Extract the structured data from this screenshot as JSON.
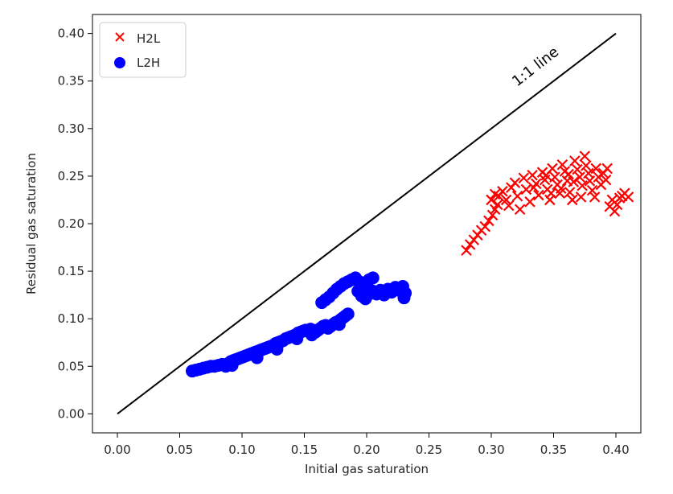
{
  "chart_data": {
    "type": "scatter",
    "xlabel": "Initial gas saturation",
    "ylabel": "Residual gas saturation",
    "xlim": [
      -0.02,
      0.42
    ],
    "ylim": [
      -0.02,
      0.42
    ],
    "xticks": [
      "0.00",
      "0.05",
      "0.10",
      "0.15",
      "0.20",
      "0.25",
      "0.30",
      "0.35",
      "0.40"
    ],
    "yticks": [
      "0.00",
      "0.05",
      "0.10",
      "0.15",
      "0.20",
      "0.25",
      "0.30",
      "0.35",
      "0.40"
    ],
    "grid": false,
    "legend_position": "top-left",
    "annotation": "1:1 line",
    "reference_line": {
      "x": [
        0.0,
        0.4
      ],
      "y": [
        0.0,
        0.4
      ],
      "color": "#000000"
    },
    "series": [
      {
        "name": "H2L",
        "marker": "x",
        "color": "#ff0000",
        "points": [
          [
            0.28,
            0.172
          ],
          [
            0.283,
            0.178
          ],
          [
            0.286,
            0.183
          ],
          [
            0.289,
            0.188
          ],
          [
            0.292,
            0.193
          ],
          [
            0.295,
            0.197
          ],
          [
            0.298,
            0.203
          ],
          [
            0.301,
            0.209
          ],
          [
            0.303,
            0.215
          ],
          [
            0.305,
            0.22
          ],
          [
            0.3,
            0.225
          ],
          [
            0.303,
            0.231
          ],
          [
            0.306,
            0.229
          ],
          [
            0.309,
            0.234
          ],
          [
            0.312,
            0.225
          ],
          [
            0.314,
            0.219
          ],
          [
            0.316,
            0.238
          ],
          [
            0.319,
            0.243
          ],
          [
            0.321,
            0.229
          ],
          [
            0.323,
            0.215
          ],
          [
            0.326,
            0.248
          ],
          [
            0.328,
            0.236
          ],
          [
            0.331,
            0.223
          ],
          [
            0.333,
            0.251
          ],
          [
            0.336,
            0.242
          ],
          [
            0.338,
            0.23
          ],
          [
            0.341,
            0.254
          ],
          [
            0.343,
            0.246
          ],
          [
            0.345,
            0.236
          ],
          [
            0.347,
            0.225
          ],
          [
            0.349,
            0.258
          ],
          [
            0.351,
            0.249
          ],
          [
            0.353,
            0.241
          ],
          [
            0.355,
            0.232
          ],
          [
            0.357,
            0.262
          ],
          [
            0.359,
            0.255
          ],
          [
            0.361,
            0.245
          ],
          [
            0.363,
            0.233
          ],
          [
            0.365,
            0.225
          ],
          [
            0.367,
            0.266
          ],
          [
            0.369,
            0.257
          ],
          [
            0.371,
            0.249
          ],
          [
            0.373,
            0.24
          ],
          [
            0.375,
            0.271
          ],
          [
            0.376,
            0.261
          ],
          [
            0.378,
            0.253
          ],
          [
            0.379,
            0.245
          ],
          [
            0.381,
            0.235
          ],
          [
            0.383,
            0.228
          ],
          [
            0.384,
            0.258
          ],
          [
            0.386,
            0.249
          ],
          [
            0.388,
            0.241
          ],
          [
            0.39,
            0.253
          ],
          [
            0.392,
            0.246
          ],
          [
            0.393,
            0.258
          ],
          [
            0.395,
            0.218
          ],
          [
            0.397,
            0.225
          ],
          [
            0.399,
            0.213
          ],
          [
            0.401,
            0.22
          ],
          [
            0.403,
            0.227
          ],
          [
            0.405,
            0.229
          ],
          [
            0.407,
            0.232
          ],
          [
            0.41,
            0.228
          ],
          [
            0.334,
            0.238
          ],
          [
            0.344,
            0.251
          ],
          [
            0.356,
            0.237
          ],
          [
            0.366,
            0.244
          ],
          [
            0.372,
            0.228
          ],
          [
            0.362,
            0.252
          ],
          [
            0.348,
            0.232
          ]
        ]
      },
      {
        "name": "L2H",
        "marker": "o",
        "color": "#0000ff",
        "points": [
          [
            0.06,
            0.045
          ],
          [
            0.063,
            0.046
          ],
          [
            0.066,
            0.047
          ],
          [
            0.069,
            0.048
          ],
          [
            0.072,
            0.049
          ],
          [
            0.075,
            0.05
          ],
          [
            0.078,
            0.05
          ],
          [
            0.081,
            0.051
          ],
          [
            0.084,
            0.052
          ],
          [
            0.087,
            0.05
          ],
          [
            0.089,
            0.053
          ],
          [
            0.091,
            0.055
          ],
          [
            0.093,
            0.056
          ],
          [
            0.095,
            0.057
          ],
          [
            0.097,
            0.058
          ],
          [
            0.099,
            0.059
          ],
          [
            0.101,
            0.06
          ],
          [
            0.103,
            0.061
          ],
          [
            0.105,
            0.062
          ],
          [
            0.107,
            0.063
          ],
          [
            0.109,
            0.064
          ],
          [
            0.111,
            0.065
          ],
          [
            0.113,
            0.066
          ],
          [
            0.115,
            0.067
          ],
          [
            0.117,
            0.068
          ],
          [
            0.119,
            0.069
          ],
          [
            0.121,
            0.07
          ],
          [
            0.123,
            0.071
          ],
          [
            0.125,
            0.072
          ],
          [
            0.127,
            0.074
          ],
          [
            0.129,
            0.075
          ],
          [
            0.131,
            0.076
          ],
          [
            0.133,
            0.077
          ],
          [
            0.135,
            0.079
          ],
          [
            0.137,
            0.08
          ],
          [
            0.139,
            0.081
          ],
          [
            0.141,
            0.082
          ],
          [
            0.143,
            0.083
          ],
          [
            0.145,
            0.085
          ],
          [
            0.147,
            0.086
          ],
          [
            0.149,
            0.087
          ],
          [
            0.151,
            0.088
          ],
          [
            0.153,
            0.087
          ],
          [
            0.155,
            0.089
          ],
          [
            0.157,
            0.088
          ],
          [
            0.159,
            0.086
          ],
          [
            0.161,
            0.088
          ],
          [
            0.163,
            0.09
          ],
          [
            0.165,
            0.092
          ],
          [
            0.167,
            0.093
          ],
          [
            0.169,
            0.09
          ],
          [
            0.171,
            0.092
          ],
          [
            0.173,
            0.094
          ],
          [
            0.175,
            0.096
          ],
          [
            0.177,
            0.097
          ],
          [
            0.179,
            0.099
          ],
          [
            0.181,
            0.101
          ],
          [
            0.183,
            0.103
          ],
          [
            0.185,
            0.105
          ],
          [
            0.164,
            0.117
          ],
          [
            0.167,
            0.12
          ],
          [
            0.17,
            0.123
          ],
          [
            0.173,
            0.127
          ],
          [
            0.176,
            0.131
          ],
          [
            0.179,
            0.134
          ],
          [
            0.182,
            0.137
          ],
          [
            0.185,
            0.139
          ],
          [
            0.188,
            0.141
          ],
          [
            0.191,
            0.143
          ],
          [
            0.194,
            0.139
          ],
          [
            0.196,
            0.135
          ],
          [
            0.199,
            0.138
          ],
          [
            0.202,
            0.141
          ],
          [
            0.205,
            0.143
          ],
          [
            0.193,
            0.129
          ],
          [
            0.196,
            0.124
          ],
          [
            0.199,
            0.121
          ],
          [
            0.202,
            0.126
          ],
          [
            0.205,
            0.129
          ],
          [
            0.208,
            0.126
          ],
          [
            0.211,
            0.13
          ],
          [
            0.214,
            0.125
          ],
          [
            0.217,
            0.131
          ],
          [
            0.22,
            0.128
          ],
          [
            0.223,
            0.133
          ],
          [
            0.226,
            0.13
          ],
          [
            0.229,
            0.134
          ],
          [
            0.231,
            0.127
          ],
          [
            0.23,
            0.122
          ],
          [
            0.112,
            0.059
          ],
          [
            0.128,
            0.068
          ],
          [
            0.144,
            0.079
          ],
          [
            0.156,
            0.083
          ],
          [
            0.178,
            0.094
          ],
          [
            0.092,
            0.051
          ]
        ]
      }
    ]
  }
}
